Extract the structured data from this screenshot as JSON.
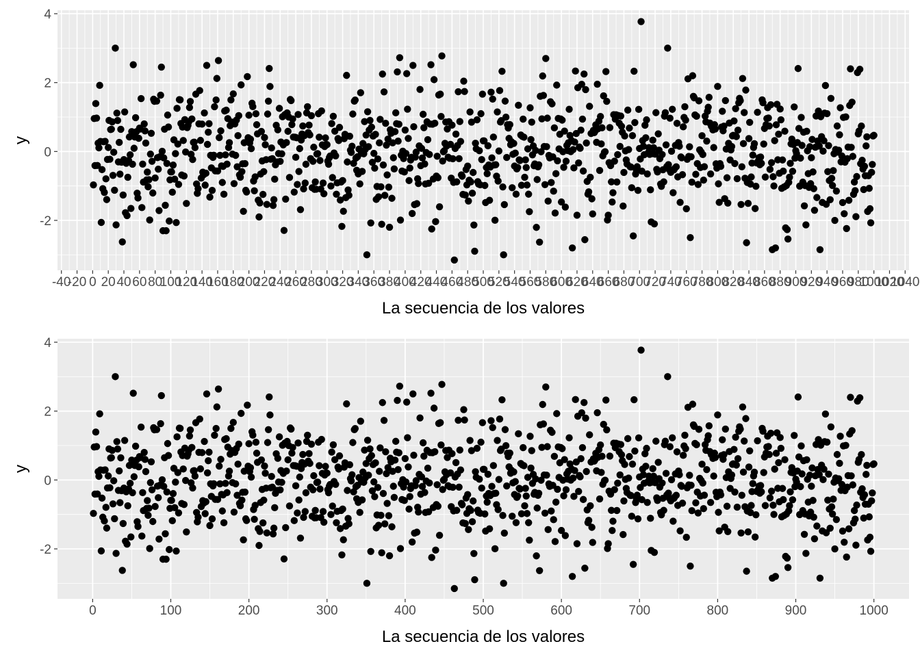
{
  "chart_data": [
    {
      "type": "scatter",
      "xlabel": "La secuencia de los valores",
      "ylabel": "y",
      "xlim": [
        -45,
        1045
      ],
      "ylim": [
        -3.45,
        4.1
      ],
      "y_ticks": [
        -2,
        0,
        2,
        4
      ],
      "y_tick_labels": [
        "-2",
        "0",
        "2",
        "4"
      ],
      "x_ticks_every": 20,
      "x_tick_range": [
        -40,
        1040
      ],
      "x_tick_labels": [
        "-40",
        "-20",
        "0",
        "20",
        "40",
        "60",
        "80",
        "100",
        "120",
        "140",
        "160",
        "180",
        "200",
        "220",
        "240",
        "260",
        "280",
        "300",
        "320",
        "340",
        "360",
        "380",
        "400",
        "420",
        "440",
        "460",
        "480",
        "500",
        "520",
        "540",
        "560",
        "580",
        "600",
        "620",
        "640",
        "660",
        "680",
        "700",
        "720",
        "740",
        "760",
        "780",
        "800",
        "820",
        "840",
        "860",
        "880",
        "900",
        "920",
        "940",
        "960",
        "980",
        "1000",
        "1020",
        "1040"
      ],
      "minor_x_every": 10,
      "grid": true,
      "point_count": 1000,
      "notable_points": [
        {
          "x": 1,
          "y": -0.97
        },
        {
          "x": 5,
          "y": 0.97
        },
        {
          "x": 9,
          "y": 1.92
        },
        {
          "x": 29,
          "y": 3.0
        },
        {
          "x": 30,
          "y": -2.13
        },
        {
          "x": 52,
          "y": 2.52
        },
        {
          "x": 88,
          "y": 2.45
        },
        {
          "x": 90,
          "y": -2.3
        },
        {
          "x": 94,
          "y": -2.3
        },
        {
          "x": 161,
          "y": 2.64
        },
        {
          "x": 226,
          "y": 2.41
        },
        {
          "x": 325,
          "y": 2.21
        },
        {
          "x": 380,
          "y": -2.2
        },
        {
          "x": 410,
          "y": 2.5
        },
        {
          "x": 433,
          "y": 2.52
        },
        {
          "x": 434,
          "y": -2.25
        },
        {
          "x": 463,
          "y": -3.15
        },
        {
          "x": 580,
          "y": 2.7
        },
        {
          "x": 614,
          "y": -2.8
        },
        {
          "x": 657,
          "y": 2.32
        },
        {
          "x": 692,
          "y": -2.45
        },
        {
          "x": 693,
          "y": 2.33
        },
        {
          "x": 702,
          "y": 3.77
        },
        {
          "x": 765,
          "y": -2.5
        },
        {
          "x": 768,
          "y": 2.2
        },
        {
          "x": 870,
          "y": -2.85
        },
        {
          "x": 874,
          "y": -2.8
        },
        {
          "x": 913,
          "y": 1.9
        },
        {
          "x": 913,
          "y": -2.13
        },
        {
          "x": 950,
          "y": -2.0
        },
        {
          "x": 970,
          "y": 2.4
        },
        {
          "x": 979,
          "y": 2.29
        },
        {
          "x": 999,
          "y": 0.45
        }
      ]
    },
    {
      "type": "scatter",
      "xlabel": "La secuencia de los valores",
      "ylabel": "y",
      "xlim": [
        -45,
        1045
      ],
      "ylim": [
        -3.45,
        4.1
      ],
      "y_ticks": [
        -2,
        0,
        2,
        4
      ],
      "y_tick_labels": [
        "-2",
        "0",
        "2",
        "4"
      ],
      "x_ticks": [
        0,
        100,
        200,
        300,
        400,
        500,
        600,
        700,
        800,
        900,
        1000
      ],
      "x_tick_labels": [
        "0",
        "100",
        "200",
        "300",
        "400",
        "500",
        "600",
        "700",
        "800",
        "900",
        "1000"
      ],
      "grid": true,
      "point_count": 1000,
      "same_data_as_panel": 1
    }
  ],
  "style": {
    "panel_bg": "#EBEBEB",
    "grid_major": "#FFFFFF",
    "point": "#000000",
    "text": "#4D4D4D",
    "title_text": "#000000"
  }
}
